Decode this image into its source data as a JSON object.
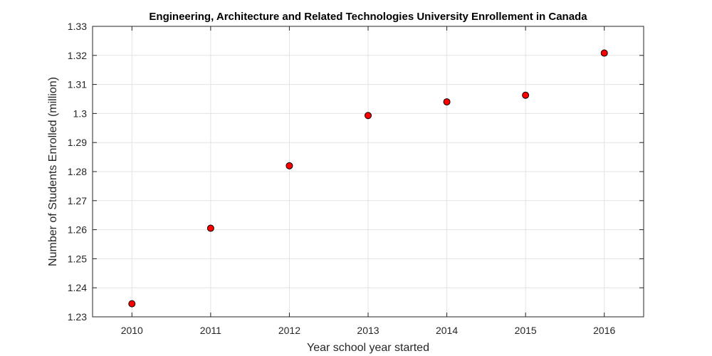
{
  "chart_data": {
    "type": "scatter",
    "title": "Engineering, Architecture and Related Technologies University Enrollement in Canada",
    "xlabel": "Year school year started",
    "ylabel": "Number of Students Enrolled (million)",
    "x": [
      2010,
      2011,
      2012,
      2013,
      2014,
      2015,
      2016
    ],
    "y": [
      1.2345,
      1.2605,
      1.282,
      1.2993,
      1.304,
      1.3063,
      1.3208
    ],
    "xlim": [
      2009.5,
      2016.5
    ],
    "ylim": [
      1.23,
      1.33
    ],
    "x_ticks": [
      "2010",
      "2011",
      "2012",
      "2013",
      "2014",
      "2015",
      "2016"
    ],
    "y_ticks": [
      "1.23",
      "1.24",
      "1.25",
      "1.26",
      "1.27",
      "1.28",
      "1.29",
      "1.3",
      "1.31",
      "1.32",
      "1.33"
    ],
    "grid": true,
    "marker_color": "#ff0000"
  }
}
